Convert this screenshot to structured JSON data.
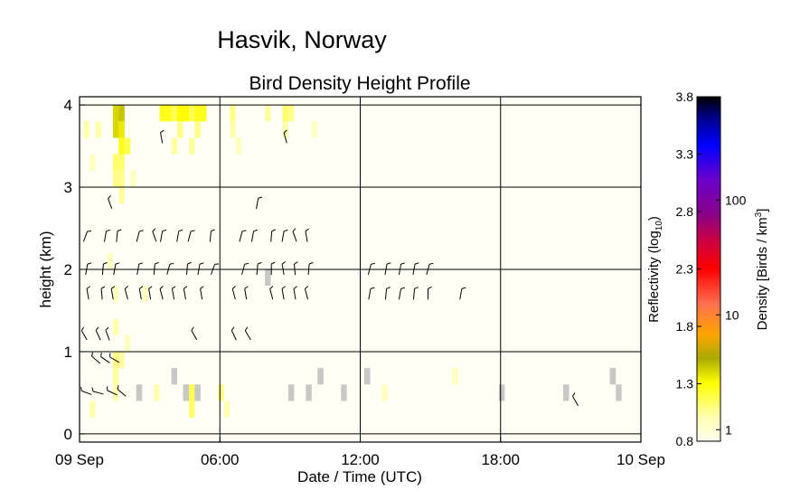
{
  "chart_data": {
    "type": "heatmap",
    "suptitle": "Hasvik, Norway",
    "title": "Bird Density Height Profile",
    "xlabel": "Date / Time (UTC)",
    "ylabel": "height (km)",
    "x_ticks": [
      "09 Sep",
      "06:00",
      "12:00",
      "18:00",
      "10 Sep"
    ],
    "x_tick_hours": [
      0,
      6,
      12,
      18,
      24
    ],
    "xlim_hours": [
      0,
      24
    ],
    "ylim_km": [
      -0.1,
      4.1
    ],
    "y_ticks": [
      "0",
      "1",
      "2",
      "3",
      "4"
    ],
    "y_tick_values": [
      0,
      1,
      2,
      3,
      4
    ],
    "grid": true,
    "colorbar": {
      "left_label": "Reflectivity (log",
      "left_label_sub": "10",
      "left_label_end": ")",
      "right_label": "Density [Birds / km",
      "right_label_sup": "3",
      "right_label_end": "]",
      "left_ticks": [
        "0.8",
        "1.3",
        "1.8",
        "2.3",
        "2.8",
        "3.3",
        "3.8"
      ],
      "left_tick_values": [
        0.8,
        1.3,
        1.8,
        2.3,
        2.8,
        3.3,
        3.8
      ],
      "right_ticks": [
        "1",
        "10",
        "100"
      ],
      "right_tick_values": [
        0.9,
        1.9,
        2.9
      ],
      "range": [
        0.8,
        3.8
      ],
      "colors": [
        "#fffff0",
        "#ffff99",
        "#ffff00",
        "#999900",
        "#ffa500",
        "#ff6600",
        "#ff0000",
        "#990066",
        "#6600aa",
        "#0000ff",
        "#000066",
        "#000000"
      ]
    },
    "cells": [
      {
        "x": 1.55,
        "y": 3.9,
        "v": 1.45
      },
      {
        "x": 1.8,
        "y": 3.9,
        "v": 1.5
      },
      {
        "x": 1.55,
        "y": 3.7,
        "v": 1.45
      },
      {
        "x": 1.8,
        "y": 3.7,
        "v": 1.4
      },
      {
        "x": 1.8,
        "y": 3.5,
        "v": 1.3
      },
      {
        "x": 2.05,
        "y": 3.5,
        "v": 1.2
      },
      {
        "x": 1.55,
        "y": 3.3,
        "v": 1.15
      },
      {
        "x": 1.8,
        "y": 3.3,
        "v": 1.15
      },
      {
        "x": 1.55,
        "y": 3.1,
        "v": 1.1
      },
      {
        "x": 1.8,
        "y": 3.1,
        "v": 1.1
      },
      {
        "x": 1.8,
        "y": 2.9,
        "v": 1.05
      },
      {
        "x": 3.55,
        "y": 3.9,
        "v": 1.3
      },
      {
        "x": 3.8,
        "y": 3.9,
        "v": 1.3
      },
      {
        "x": 4.3,
        "y": 3.9,
        "v": 1.35
      },
      {
        "x": 4.55,
        "y": 3.9,
        "v": 1.35
      },
      {
        "x": 5.05,
        "y": 3.9,
        "v": 1.3
      },
      {
        "x": 5.3,
        "y": 3.9,
        "v": 1.3
      },
      {
        "x": 4.05,
        "y": 3.9,
        "v": 1.2
      },
      {
        "x": 4.8,
        "y": 3.9,
        "v": 1.2
      },
      {
        "x": 4.3,
        "y": 3.7,
        "v": 1.1
      },
      {
        "x": 5.05,
        "y": 3.7,
        "v": 1.1
      },
      {
        "x": 4.05,
        "y": 3.5,
        "v": 1.05
      },
      {
        "x": 4.8,
        "y": 3.5,
        "v": 1.05
      },
      {
        "x": 0.3,
        "y": 3.7,
        "v": 1.0
      },
      {
        "x": 0.8,
        "y": 3.7,
        "v": 1.0
      },
      {
        "x": 0.55,
        "y": 3.3,
        "v": 0.95
      },
      {
        "x": 2.3,
        "y": 3.1,
        "v": 0.95
      },
      {
        "x": 6.55,
        "y": 3.9,
        "v": 1.1
      },
      {
        "x": 6.55,
        "y": 3.7,
        "v": 1.0
      },
      {
        "x": 8.05,
        "y": 3.9,
        "v": 1.05
      },
      {
        "x": 8.8,
        "y": 3.9,
        "v": 1.15
      },
      {
        "x": 9.05,
        "y": 3.9,
        "v": 1.1
      },
      {
        "x": 8.8,
        "y": 3.7,
        "v": 1.0
      },
      {
        "x": 6.8,
        "y": 3.5,
        "v": 0.95
      },
      {
        "x": 10.05,
        "y": 3.7,
        "v": 0.95
      },
      {
        "x": 1.3,
        "y": 2.1,
        "v": 0.95
      },
      {
        "x": 1.55,
        "y": 1.7,
        "v": 0.95
      },
      {
        "x": 1.55,
        "y": 1.3,
        "v": 1.0
      },
      {
        "x": 1.55,
        "y": 0.9,
        "v": 1.1
      },
      {
        "x": 1.8,
        "y": 0.9,
        "v": 1.05
      },
      {
        "x": 1.55,
        "y": 0.7,
        "v": 1.05
      },
      {
        "x": 1.55,
        "y": 0.5,
        "v": 1.0
      },
      {
        "x": 2.05,
        "y": 1.1,
        "v": 0.95
      },
      {
        "x": 2.55,
        "y": 0.5,
        "v": 1.05
      },
      {
        "x": 3.3,
        "y": 0.5,
        "v": 1.0
      },
      {
        "x": 4.8,
        "y": 0.5,
        "v": 1.2
      },
      {
        "x": 4.8,
        "y": 0.3,
        "v": 1.15
      },
      {
        "x": 6.05,
        "y": 0.5,
        "v": 1.1
      },
      {
        "x": 6.3,
        "y": 0.3,
        "v": 1.0
      },
      {
        "x": 0.55,
        "y": 0.3,
        "v": 1.0
      },
      {
        "x": 2.8,
        "y": 1.7,
        "v": 0.95
      },
      {
        "x": 16.05,
        "y": 0.7,
        "v": 0.95
      },
      {
        "x": 20.8,
        "y": 0.5,
        "v": 0.95
      },
      {
        "x": 22.8,
        "y": 0.7,
        "v": 0.95
      },
      {
        "x": 13.05,
        "y": 0.5,
        "v": 0.95
      },
      {
        "x": 10.3,
        "y": 0.7,
        "v": 0.95
      }
    ],
    "missing_cells": [
      {
        "x": 2.55,
        "y": 0.5
      },
      {
        "x": 4.05,
        "y": 0.7
      },
      {
        "x": 4.55,
        "y": 0.5
      },
      {
        "x": 5.05,
        "y": 0.5
      },
      {
        "x": 8.05,
        "y": 1.9
      },
      {
        "x": 9.05,
        "y": 0.5
      },
      {
        "x": 9.8,
        "y": 0.5
      },
      {
        "x": 10.3,
        "y": 0.7
      },
      {
        "x": 11.3,
        "y": 0.5
      },
      {
        "x": 12.3,
        "y": 0.7
      },
      {
        "x": 18.05,
        "y": 0.5
      },
      {
        "x": 20.8,
        "y": 0.5
      },
      {
        "x": 22.8,
        "y": 0.7
      },
      {
        "x": 23.05,
        "y": 0.5
      }
    ],
    "wind_barbs": [
      {
        "x": 0.25,
        "y": 2.4,
        "a": 200
      },
      {
        "x": 1.1,
        "y": 2.4,
        "a": 190
      },
      {
        "x": 1.6,
        "y": 2.4,
        "a": 185
      },
      {
        "x": 2.5,
        "y": 2.4,
        "a": 195
      },
      {
        "x": 3.2,
        "y": 2.4,
        "a": 160
      },
      {
        "x": 3.5,
        "y": 2.4,
        "a": 190
      },
      {
        "x": 4.2,
        "y": 2.4,
        "a": 190
      },
      {
        "x": 4.7,
        "y": 2.4,
        "a": 195
      },
      {
        "x": 5.6,
        "y": 2.4,
        "a": 185
      },
      {
        "x": 0.3,
        "y": 2.0,
        "a": 190
      },
      {
        "x": 1.0,
        "y": 2.0,
        "a": 185
      },
      {
        "x": 1.5,
        "y": 2.0,
        "a": 190
      },
      {
        "x": 2.5,
        "y": 2.0,
        "a": 190
      },
      {
        "x": 3.2,
        "y": 2.0,
        "a": 185
      },
      {
        "x": 3.8,
        "y": 2.0,
        "a": 195
      },
      {
        "x": 4.6,
        "y": 2.0,
        "a": 185
      },
      {
        "x": 5.1,
        "y": 2.0,
        "a": 190
      },
      {
        "x": 5.7,
        "y": 2.0,
        "a": 200
      },
      {
        "x": 0.35,
        "y": 1.7,
        "a": 170
      },
      {
        "x": 0.95,
        "y": 1.7,
        "a": 175
      },
      {
        "x": 1.4,
        "y": 1.7,
        "a": 170
      },
      {
        "x": 2.0,
        "y": 1.7,
        "a": 165
      },
      {
        "x": 2.6,
        "y": 1.7,
        "a": 170
      },
      {
        "x": 3.0,
        "y": 1.7,
        "a": 170
      },
      {
        "x": 3.5,
        "y": 1.7,
        "a": 165
      },
      {
        "x": 4.0,
        "y": 1.7,
        "a": 170
      },
      {
        "x": 4.5,
        "y": 1.7,
        "a": 170
      },
      {
        "x": 5.2,
        "y": 1.7,
        "a": 170
      },
      {
        "x": 0.2,
        "y": 1.2,
        "a": 150
      },
      {
        "x": 0.8,
        "y": 1.2,
        "a": 155
      },
      {
        "x": 1.2,
        "y": 1.2,
        "a": 160
      },
      {
        "x": 4.9,
        "y": 1.2,
        "a": 150
      },
      {
        "x": 0.7,
        "y": 0.9,
        "a": 130
      },
      {
        "x": 1.1,
        "y": 0.9,
        "a": 125
      },
      {
        "x": 1.5,
        "y": 0.9,
        "a": 120
      },
      {
        "x": 0.3,
        "y": 0.5,
        "a": 110
      },
      {
        "x": 0.8,
        "y": 0.5,
        "a": 105
      },
      {
        "x": 1.4,
        "y": 0.5,
        "a": 115
      },
      {
        "x": 1.8,
        "y": 0.5,
        "a": 130
      },
      {
        "x": 1.3,
        "y": 2.8,
        "a": 160
      },
      {
        "x": 3.5,
        "y": 3.6,
        "a": 170
      },
      {
        "x": 6.9,
        "y": 2.4,
        "a": 195
      },
      {
        "x": 7.4,
        "y": 2.4,
        "a": 190
      },
      {
        "x": 8.2,
        "y": 2.4,
        "a": 185
      },
      {
        "x": 8.7,
        "y": 2.4,
        "a": 190
      },
      {
        "x": 9.2,
        "y": 2.4,
        "a": 160
      },
      {
        "x": 9.7,
        "y": 2.4,
        "a": 170
      },
      {
        "x": 7.6,
        "y": 2.8,
        "a": 190
      },
      {
        "x": 8.8,
        "y": 3.6,
        "a": 165
      },
      {
        "x": 7.0,
        "y": 2.0,
        "a": 195
      },
      {
        "x": 7.6,
        "y": 2.0,
        "a": 185
      },
      {
        "x": 8.2,
        "y": 2.0,
        "a": 180
      },
      {
        "x": 8.7,
        "y": 2.0,
        "a": 170
      },
      {
        "x": 9.2,
        "y": 2.0,
        "a": 175
      },
      {
        "x": 9.8,
        "y": 2.0,
        "a": 185
      },
      {
        "x": 6.6,
        "y": 1.7,
        "a": 165
      },
      {
        "x": 7.1,
        "y": 1.7,
        "a": 170
      },
      {
        "x": 8.2,
        "y": 1.7,
        "a": 165
      },
      {
        "x": 8.7,
        "y": 1.7,
        "a": 170
      },
      {
        "x": 9.2,
        "y": 1.7,
        "a": 170
      },
      {
        "x": 9.7,
        "y": 1.7,
        "a": 165
      },
      {
        "x": 6.6,
        "y": 1.2,
        "a": 155
      },
      {
        "x": 7.2,
        "y": 1.2,
        "a": 150
      },
      {
        "x": 12.4,
        "y": 2.0,
        "a": 195
      },
      {
        "x": 13.1,
        "y": 2.0,
        "a": 190
      },
      {
        "x": 13.7,
        "y": 2.0,
        "a": 190
      },
      {
        "x": 14.3,
        "y": 2.0,
        "a": 190
      },
      {
        "x": 14.9,
        "y": 2.0,
        "a": 195
      },
      {
        "x": 12.4,
        "y": 1.7,
        "a": 190
      },
      {
        "x": 13.1,
        "y": 1.7,
        "a": 185
      },
      {
        "x": 13.7,
        "y": 1.7,
        "a": 190
      },
      {
        "x": 14.3,
        "y": 1.7,
        "a": 185
      },
      {
        "x": 14.9,
        "y": 1.7,
        "a": 180
      },
      {
        "x": 16.3,
        "y": 1.7,
        "a": 190
      },
      {
        "x": 21.2,
        "y": 0.4,
        "a": 150
      }
    ]
  }
}
